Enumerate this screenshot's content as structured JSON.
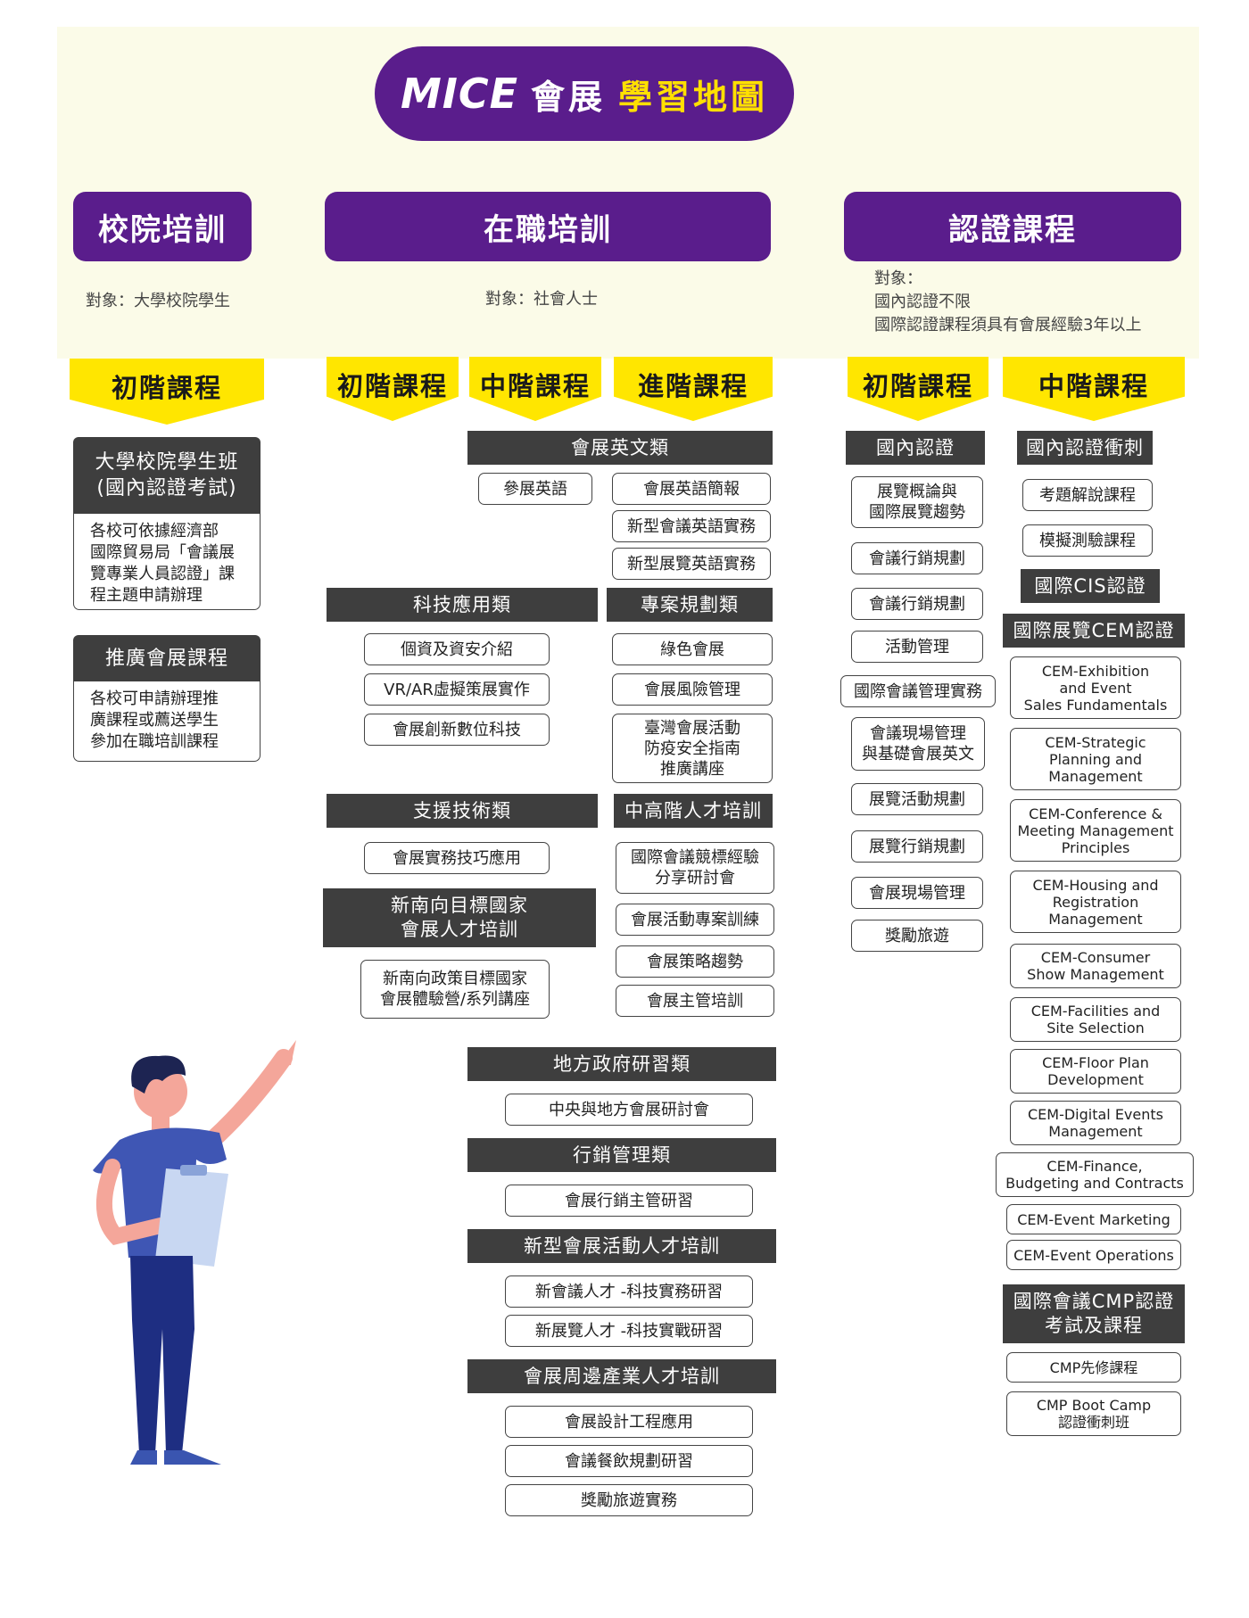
{
  "header": {
    "logo_text": "MICE",
    "title_part1": "會展",
    "title_part2": "學習地圖"
  },
  "categories": [
    {
      "label": "校院培訓",
      "target": "對象：大學校院學生"
    },
    {
      "label": "在職培訓",
      "target": "對象：社會人士"
    },
    {
      "label": "認證課程",
      "target": "對象：\n國內認證不限\n國際認證課程須具有會展經驗3年以上"
    }
  ],
  "levels": {
    "beginner": "初階課程",
    "intermediate": "中階課程",
    "advanced": "進階課程"
  },
  "campus": {
    "h1": "大學校院學生班\n(國內認證考試)",
    "d1": "各校可依據經濟部\n國際貿易局「會議展\n覽專業人員認證」課\n程主題申請辦理",
    "h2": "推廣會展課程",
    "d2": "各校可申請辦理推\n廣課程或薦送學生\n參加在職培訓課程"
  },
  "job": {
    "english_header": "會展英文類",
    "english_items": [
      "參展英語",
      "會展英語簡報",
      "新型會議英語實務",
      "新型展覽英語實務"
    ],
    "tech_header": "科技應用類",
    "tech_items": [
      "個資及資安介紹",
      "VR/AR虛擬策展實作",
      "會展創新數位科技"
    ],
    "project_header": "專案規劃類",
    "project_items": [
      "綠色會展",
      "會展風險管理",
      "臺灣會展活動\n防疫安全指南\n推廣講座"
    ],
    "support_header": "支援技術類",
    "support_items": [
      "會展實務技巧應用"
    ],
    "senior_header": "中高階人才培訓",
    "senior_items": [
      "國際會議競標經驗\n分享研討會",
      "會展活動專案訓練",
      "會展策略趨勢",
      "會展主管培訓"
    ],
    "southbound_header": "新南向目標國家\n會展人才培訓",
    "southbound_items": [
      "新南向政策目標國家\n會展體驗營/系列講座"
    ],
    "local_header": "地方政府研習類",
    "local_items": [
      "中央與地方會展研討會"
    ],
    "marketing_header": "行銷管理類",
    "marketing_items": [
      "會展行銷主管研習"
    ],
    "newtype_header": "新型會展活動人才培訓",
    "newtype_items": [
      "新會議人才 -科技實務研習",
      "新展覽人才 -科技實戰研習"
    ],
    "periphery_header": "會展周邊產業人才培訓",
    "periphery_items": [
      "會展設計工程應用",
      "會議餐飲規劃研習",
      "獎勵旅遊實務"
    ]
  },
  "cert": {
    "domestic_header": "國內認證",
    "domestic_items": [
      "展覽概論與\n國際展覽趨勢",
      "會議行銷規劃",
      "會議行銷規劃",
      "活動管理",
      "國際會議管理實務",
      "會議現場管理\n與基礎會展英文",
      "展覽活動規劃",
      "展覽行銷規劃",
      "會展現場管理",
      "獎勵旅遊"
    ],
    "sprint_header": "國內認證衝刺",
    "sprint_items": [
      "考題解說課程",
      "模擬測驗課程"
    ],
    "cis_header": "國際CIS認證",
    "cem_header": "國際展覽CEM認證",
    "cem_items": [
      "CEM-Exhibition\nand Event\nSales Fundamentals",
      "CEM-Strategic\nPlanning and\nManagement",
      "CEM-Conference &\nMeeting Management\nPrinciples",
      "CEM-Housing and\nRegistration\nManagement",
      "CEM-Consumer\nShow Management",
      "CEM-Facilities and\nSite Selection",
      "CEM-Floor Plan\nDevelopment",
      "CEM-Digital Events\nManagement",
      "CEM-Finance,\nBudgeting and Contracts",
      "CEM-Event Marketing",
      "CEM-Event Operations"
    ],
    "cmp_header": "國際會議CMP認證\n考試及課程",
    "cmp_items": [
      "CMP先修課程",
      "CMP Boot Camp\n認證衝刺班"
    ]
  }
}
